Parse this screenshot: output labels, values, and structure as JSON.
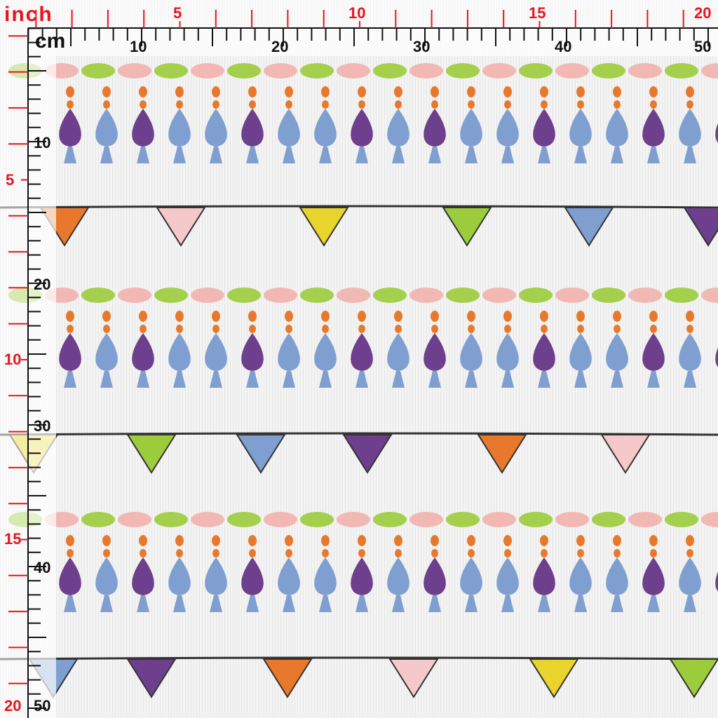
{
  "rulers": {
    "inch_unit": "inch",
    "cm_unit": "cm",
    "inch_top_labels": [
      "5",
      "10",
      "15",
      "20"
    ],
    "inch_left_labels": [
      "5",
      "10",
      "15",
      "20"
    ],
    "cm_top_labels": [
      "10",
      "20",
      "30",
      "40",
      "50"
    ],
    "cm_left_labels": [
      "10",
      "20",
      "30",
      "40",
      "50"
    ],
    "inch_color": "#e8141c",
    "cm_color": "#111111"
  },
  "pattern": {
    "leaf_colors": [
      "#9ccc3c",
      "#f2b3ad"
    ],
    "bead_color": "#e8792c",
    "drop_colors": [
      "#6e3f8c",
      "#7e9fd0",
      "#6e3f8c",
      "#7e9fd0",
      "#7e9fd0",
      "#6e3f8c",
      "#7e9fd0",
      "#7e9fd0"
    ],
    "flag_colors": [
      "#e8792c",
      "#f5c9c9",
      "#e8d42c",
      "#9ccc3c",
      "#7e9fd0",
      "#6e3f8c"
    ],
    "line_color": "#333333"
  }
}
